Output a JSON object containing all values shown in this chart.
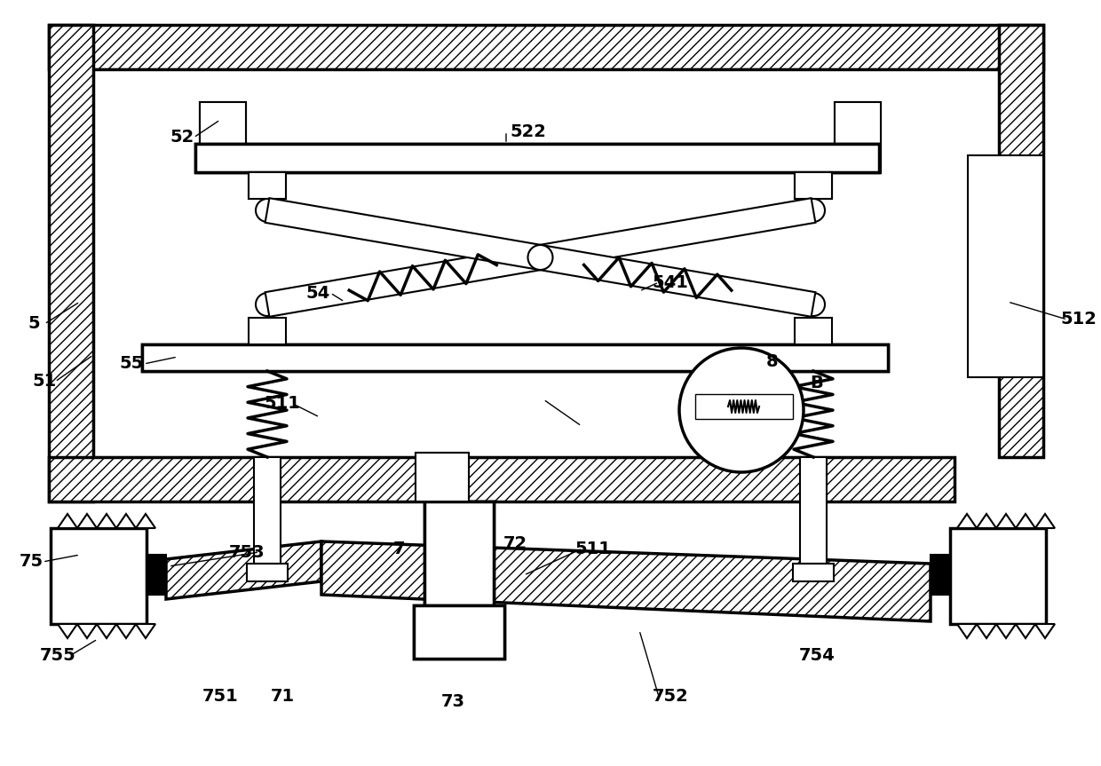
{
  "bg_color": "#ffffff",
  "lw": 1.5,
  "lw2": 2.5,
  "fig_width": 12.4,
  "fig_height": 8.63
}
